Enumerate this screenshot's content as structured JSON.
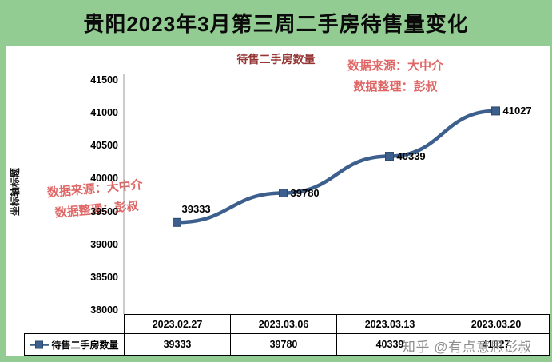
{
  "page": {
    "banner_title": "贵阳2023年3月第三周二手房待售量变化",
    "watermark_bottom": "知乎 @有点意思彭叔"
  },
  "watermarks": {
    "source_line1": "数据来源：大中介",
    "source_line2": "数据整理：彭叔"
  },
  "chart_data": {
    "type": "line",
    "title": "待售二手房数量",
    "categories": [
      "2023.02.27",
      "2023.03.06",
      "2023.03.13",
      "2023.03.20"
    ],
    "series": [
      {
        "name": "待售二手房数量",
        "values": [
          39333,
          39780,
          40339,
          41027
        ]
      }
    ],
    "ylabel": "坐标轴标题",
    "xlabel": "",
    "ylim": [
      38000,
      41500
    ],
    "yticks": [
      38000,
      38500,
      39000,
      39500,
      40000,
      40500,
      41000,
      41500
    ],
    "grid": false,
    "legend_position": "table-left",
    "line_color": "#3c5f8d",
    "marker_border_color": "#2e4a6b",
    "data_labels": [
      39333,
      39780,
      40339,
      41027
    ]
  },
  "colors": {
    "banner_bg": "#93cc93",
    "chart_bg": "#ffffff",
    "chart_title": "#963634",
    "watermark_red": "#e06666",
    "zhihu_gray": "#8e8e8e",
    "axis_line": "#9a9a9a"
  }
}
